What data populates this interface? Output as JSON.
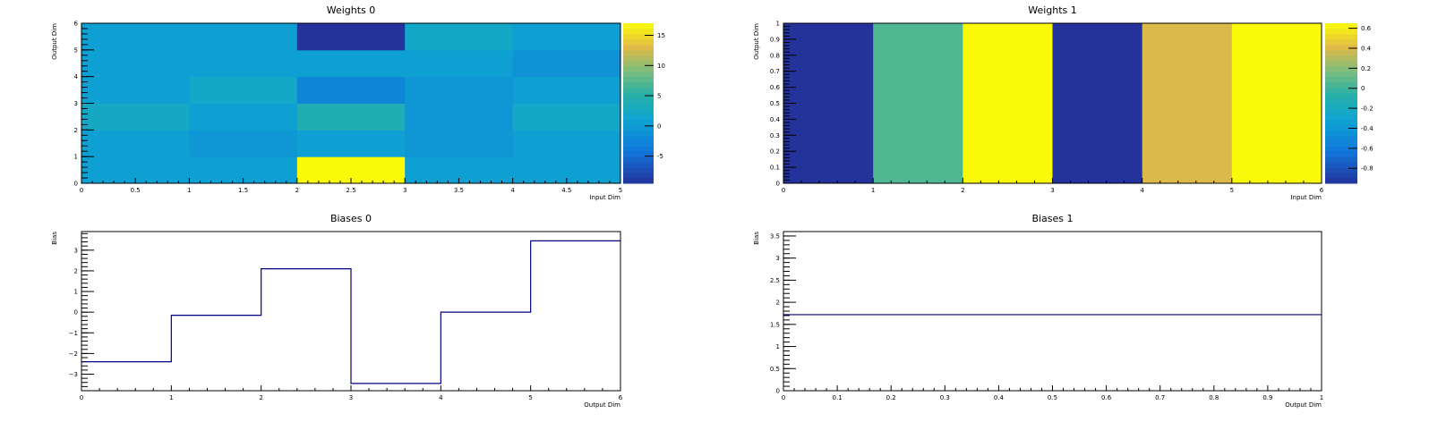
{
  "chart_data": [
    {
      "type": "heatmap",
      "title": "Weights 0",
      "xlabel": "Input Dim",
      "ylabel": "Output Dim",
      "xlim": [
        0,
        5
      ],
      "ylim": [
        0,
        6
      ],
      "x_edges": [
        0,
        1,
        2,
        3,
        4,
        5
      ],
      "y_edges": [
        0,
        1,
        2,
        3,
        4,
        5,
        6
      ],
      "x_ticks": [
        0,
        0.5,
        1,
        1.5,
        2,
        2.5,
        3,
        3.5,
        4,
        4.5,
        5
      ],
      "x_tick_labels": [
        "0",
        "0.5",
        "1",
        "1.5",
        "2",
        "2.5",
        "3",
        "3.5",
        "4",
        "4.5",
        "5"
      ],
      "y_ticks": [
        0,
        1,
        2,
        3,
        4,
        5,
        6
      ],
      "y_tick_labels": [
        "0",
        "1",
        "2",
        "3",
        "4",
        "5",
        "6"
      ],
      "values": [
        [
          0.5,
          0.5,
          17,
          0.5,
          0.5
        ],
        [
          0.5,
          -0.5,
          0.5,
          -0.5,
          0.5
        ],
        [
          2.5,
          0.5,
          4,
          -0.5,
          2
        ],
        [
          0.5,
          2,
          -2.5,
          -0.5,
          0.5
        ],
        [
          0.5,
          0.5,
          0.5,
          0.5,
          -1
        ],
        [
          0.5,
          0.5,
          -9.5,
          2,
          0.5
        ]
      ],
      "zlim": [
        -9.5,
        17
      ],
      "colorbar_ticks": [
        -5,
        0,
        5,
        10,
        15
      ],
      "colorbar_tick_labels": [
        "-5",
        "0",
        "5",
        "10",
        "15"
      ]
    },
    {
      "type": "heatmap",
      "title": "Weights 1",
      "xlabel": "Input Dim",
      "ylabel": "Output Dim",
      "xlim": [
        0,
        6
      ],
      "ylim": [
        0,
        1
      ],
      "x_edges": [
        0,
        1,
        2,
        3,
        4,
        5,
        6
      ],
      "y_edges": [
        0,
        1
      ],
      "x_ticks": [
        0,
        1,
        2,
        3,
        4,
        5,
        6
      ],
      "x_tick_labels": [
        "0",
        "1",
        "2",
        "3",
        "4",
        "5",
        "6"
      ],
      "y_ticks": [
        0,
        0.1,
        0.2,
        0.3,
        0.4,
        0.5,
        0.6,
        0.7,
        0.8,
        0.9,
        1
      ],
      "y_tick_labels": [
        "0",
        "0.1",
        "0.2",
        "0.3",
        "0.4",
        "0.5",
        "0.6",
        "0.7",
        "0.8",
        "0.9",
        "1"
      ],
      "values": [
        [
          -0.95,
          0.05,
          0.65,
          -0.95,
          0.4,
          0.65
        ]
      ],
      "zlim": [
        -0.95,
        0.65
      ],
      "colorbar_ticks": [
        -0.8,
        -0.6,
        -0.4,
        -0.2,
        0,
        0.2,
        0.4,
        0.6
      ],
      "colorbar_tick_labels": [
        "-0.8",
        "-0.6",
        "-0.4",
        "-0.2",
        "0",
        "0.2",
        "0.4",
        "0.6"
      ]
    },
    {
      "type": "line",
      "style": "step",
      "title": "Biases 0",
      "xlabel": "Output Dim",
      "ylabel": "Bias",
      "xlim": [
        0,
        6
      ],
      "ylim": [
        -3.8,
        3.9
      ],
      "bin_edges": [
        0,
        1,
        2,
        3,
        4,
        5,
        6
      ],
      "values": [
        -2.4,
        -0.15,
        2.1,
        -3.45,
        0,
        3.45
      ],
      "line_color": "#00007f",
      "x_ticks": [
        0,
        1,
        2,
        3,
        4,
        5,
        6
      ],
      "x_tick_labels": [
        "0",
        "1",
        "2",
        "3",
        "4",
        "5",
        "6"
      ],
      "y_ticks": [
        -3,
        -2,
        -1,
        0,
        1,
        2,
        3
      ],
      "y_tick_labels": [
        "−3",
        "−2",
        "−1",
        "0",
        "1",
        "2",
        "3"
      ]
    },
    {
      "type": "line",
      "style": "step",
      "title": "Biases 1",
      "xlabel": "Output Dim",
      "ylabel": "Bias",
      "xlim": [
        0,
        1
      ],
      "ylim": [
        0,
        3.6
      ],
      "bin_edges": [
        0,
        1
      ],
      "values": [
        1.72
      ],
      "line_color": "#00007f",
      "x_ticks": [
        0,
        0.1,
        0.2,
        0.3,
        0.4,
        0.5,
        0.6,
        0.7,
        0.8,
        0.9,
        1
      ],
      "x_tick_labels": [
        "0",
        "0.1",
        "0.2",
        "0.3",
        "0.4",
        "0.5",
        "0.6",
        "0.7",
        "0.8",
        "0.9",
        "1"
      ],
      "y_ticks": [
        0,
        0.5,
        1,
        1.5,
        2,
        2.5,
        3,
        3.5
      ],
      "y_tick_labels": [
        "0",
        "0.5",
        "1",
        "1.5",
        "2",
        "2.5",
        "3",
        "3.5"
      ]
    }
  ]
}
